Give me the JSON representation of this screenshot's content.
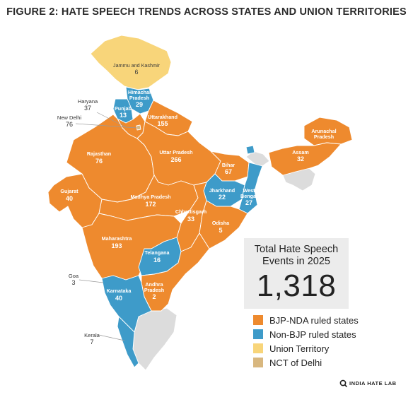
{
  "title": "FIGURE 2: HATE SPEECH TRENDS ACROSS STATES AND UNION TERRITORIES",
  "colors": {
    "bjp": "#EE8A2E",
    "non_bjp": "#3E9BC9",
    "ut": "#F8D57A",
    "delhi": "#D8B77F",
    "no_data": "#DCDCDC",
    "border": "#ffffff"
  },
  "regions": {
    "jk": {
      "name": "Jammu and Kashmir",
      "value": "6"
    },
    "hp": {
      "name": "Himachal Pradesh",
      "value": "29"
    },
    "punjab": {
      "name": "Punjab",
      "value": "13"
    },
    "uttarakhand": {
      "name": "Uttarakhand",
      "value": "155"
    },
    "rajasthan": {
      "name": "Rajasthan",
      "value": "76"
    },
    "up": {
      "name": "Uttar Pradesh",
      "value": "266"
    },
    "bihar": {
      "name": "Bihar",
      "value": "67"
    },
    "arunachal": {
      "name": "Arunachal Pradesh",
      "value": ""
    },
    "assam": {
      "name": "Assam",
      "value": "32"
    },
    "jharkhand": {
      "name": "Jharkhand",
      "value": "22"
    },
    "wb": {
      "name": "West Bengal",
      "value": "27"
    },
    "gujarat": {
      "name": "Gujarat",
      "value": "40"
    },
    "mp": {
      "name": "Madhya Pradesh",
      "value": "172"
    },
    "chhattisgarh": {
      "name": "Chhattisgarh",
      "value": "33"
    },
    "odisha": {
      "name": "Odisha",
      "value": "5"
    },
    "maharashtra": {
      "name": "Maharashtra",
      "value": "193"
    },
    "telangana": {
      "name": "Telangana",
      "value": "16"
    },
    "ap": {
      "name": "Andhra Pradesh",
      "value": "2"
    },
    "karnataka": {
      "name": "Karnataka",
      "value": "40"
    }
  },
  "callouts": {
    "haryana": {
      "name": "Haryana",
      "value": "37"
    },
    "delhi": {
      "name": "New Delhi",
      "value": "76"
    },
    "goa": {
      "name": "Goa",
      "value": "3"
    },
    "kerala": {
      "name": "Kerala",
      "value": "7"
    }
  },
  "total": {
    "label": "Total Hate Speech Events in 2025",
    "value": "1,318"
  },
  "legend": [
    {
      "label": "BJP-NDA ruled states",
      "color": "#EE8A2E"
    },
    {
      "label": "Non-BJP ruled states",
      "color": "#3E9BC9"
    },
    {
      "label": "Union Territory",
      "color": "#F8D57A"
    },
    {
      "label": "NCT of Delhi",
      "color": "#D8B77F"
    }
  ],
  "brand": "INDIA HATE LAB"
}
